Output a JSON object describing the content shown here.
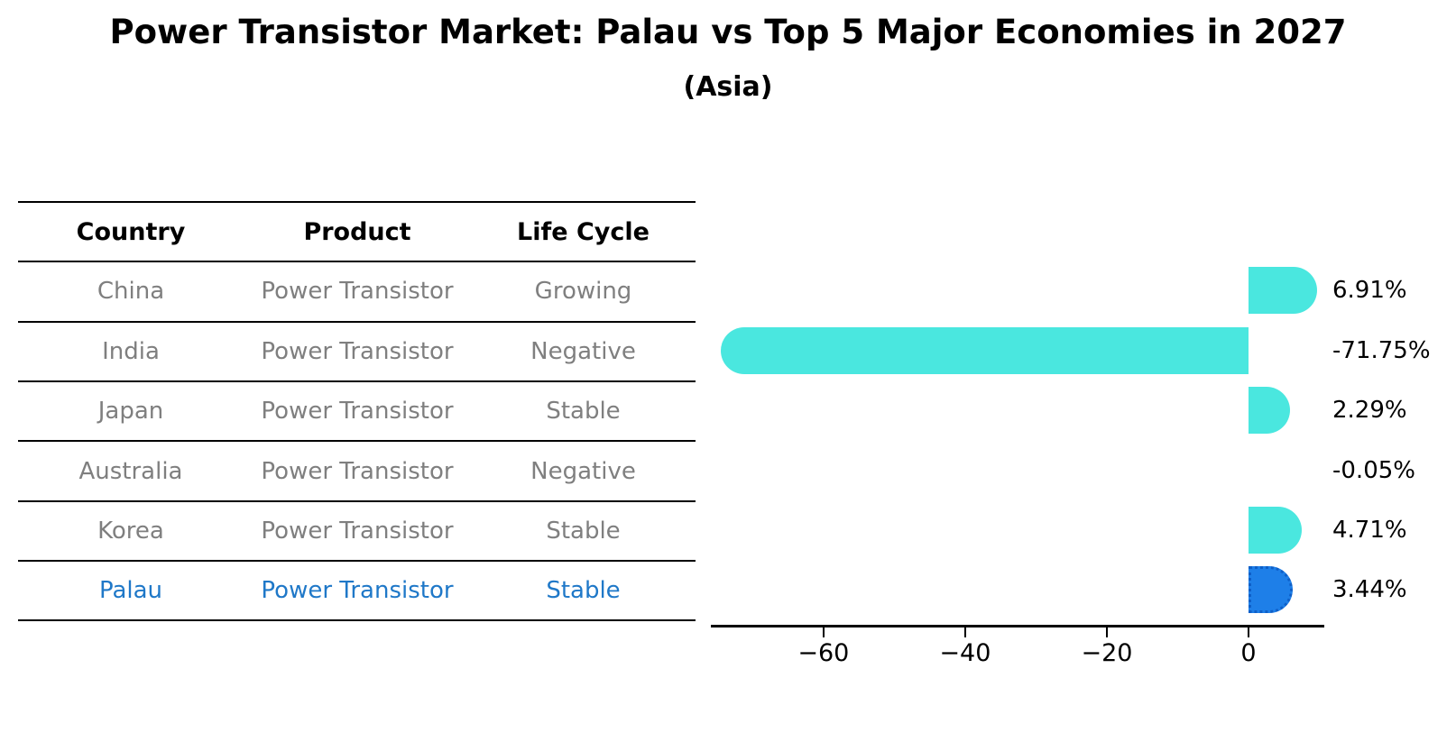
{
  "title": "Power Transistor Market: Palau vs Top 5 Major Economies in 2027",
  "subtitle": "(Asia)",
  "table": {
    "headers": [
      "Country",
      "Product",
      "Life Cycle"
    ],
    "rows": [
      {
        "country": "China",
        "product": "Power Transistor",
        "life_cycle": "Growing",
        "highlight": false
      },
      {
        "country": "India",
        "product": "Power Transistor",
        "life_cycle": "Negative",
        "highlight": false
      },
      {
        "country": "Japan",
        "product": "Power Transistor",
        "life_cycle": "Stable",
        "highlight": false
      },
      {
        "country": "Australia",
        "product": "Power Transistor",
        "life_cycle": "Negative",
        "highlight": false
      },
      {
        "country": "Korea",
        "product": "Power Transistor",
        "life_cycle": "Stable",
        "highlight": false
      },
      {
        "country": "Palau",
        "product": "Power Transistor",
        "life_cycle": "Stable",
        "highlight": true
      }
    ]
  },
  "chart_data": {
    "type": "bar",
    "orientation": "horizontal",
    "title": "Power Transistor Market: Palau vs Top 5 Major Economies in 2027",
    "subtitle": "(Asia)",
    "categories": [
      "China",
      "India",
      "Japan",
      "Australia",
      "Korea",
      "Palau"
    ],
    "values": [
      6.91,
      -71.75,
      2.29,
      -0.05,
      4.71,
      3.44
    ],
    "value_labels": [
      "6.91%",
      "-71.75%",
      "2.29%",
      "-0.05%",
      "4.71%",
      "3.44%"
    ],
    "xlabel": "",
    "ylabel": "",
    "xlim": [
      -76,
      10.8
    ],
    "xticks": [
      -60,
      -40,
      -20,
      0
    ],
    "xtick_labels": [
      "−60",
      "−40",
      "−20",
      "0"
    ],
    "grid": false,
    "legend": "none",
    "bar_color": "#4AE7DF",
    "highlight_color": "#1E7FE8",
    "highlight_index": 5,
    "highlight_text_color": "#1f78c8",
    "table_text_color": "#7f7f7f",
    "axis_color": "#000000"
  }
}
